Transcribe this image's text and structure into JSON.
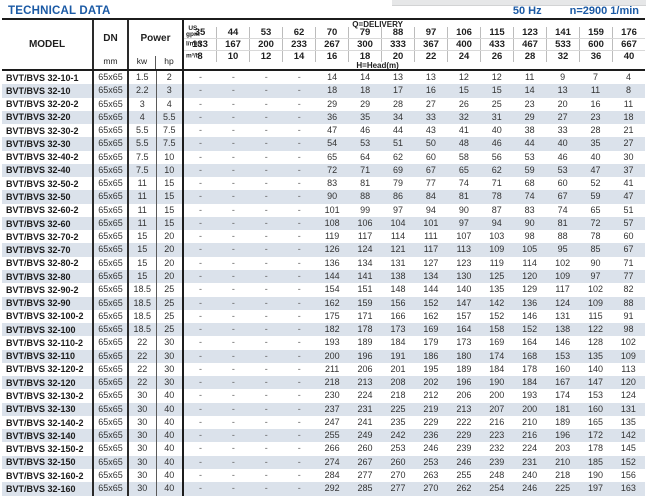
{
  "page": {
    "title": "TECHNICAL DATA",
    "frequency": "50 Hz",
    "speed": "n=2900 1/min"
  },
  "colors": {
    "accent_blue": "#1b5aa5",
    "row_stripe": "#dbe2eb",
    "border_dark": "#1c1c1c"
  },
  "table": {
    "header": {
      "model_label": "MODEL",
      "dn_label": "DN",
      "dn_unit": "mm",
      "power_label": "Power",
      "power_units": [
        "kw",
        "hp"
      ],
      "delivery_label": "Q=DELIVERY",
      "head_label": "H=Head(m)",
      "flow_rows": [
        {
          "unit_lines": [
            "US",
            "gpm"
          ],
          "values": [
            "35",
            "44",
            "53",
            "62",
            "70",
            "79",
            "88",
            "97",
            "106",
            "115",
            "123",
            "141",
            "159",
            "176"
          ]
        },
        {
          "unit_lines": [
            "l/min"
          ],
          "values": [
            "133",
            "167",
            "200",
            "233",
            "267",
            "300",
            "333",
            "367",
            "400",
            "433",
            "467",
            "533",
            "600",
            "667"
          ]
        },
        {
          "unit_lines": [
            "m³/h"
          ],
          "values": [
            "8",
            "10",
            "12",
            "14",
            "16",
            "18",
            "20",
            "22",
            "24",
            "26",
            "28",
            "32",
            "36",
            "40"
          ]
        }
      ]
    },
    "rows": [
      {
        "model": "BVT/BVS 32-10-1",
        "dn": "65x65",
        "kw": "1.5",
        "hp": "2",
        "heads": [
          "-",
          "-",
          "-",
          "-",
          "14",
          "14",
          "13",
          "13",
          "12",
          "12",
          "11",
          "9",
          "7",
          "4"
        ]
      },
      {
        "model": "BVT/BVS 32-10",
        "dn": "65x65",
        "kw": "2.2",
        "hp": "3",
        "heads": [
          "-",
          "-",
          "-",
          "-",
          "18",
          "18",
          "17",
          "16",
          "15",
          "15",
          "14",
          "13",
          "11",
          "8"
        ]
      },
      {
        "model": "BVT/BVS 32-20-2",
        "dn": "65x65",
        "kw": "3",
        "hp": "4",
        "heads": [
          "-",
          "-",
          "-",
          "-",
          "29",
          "29",
          "28",
          "27",
          "26",
          "25",
          "23",
          "20",
          "16",
          "11"
        ]
      },
      {
        "model": "BVT/BVS 32-20",
        "dn": "65x65",
        "kw": "4",
        "hp": "5.5",
        "heads": [
          "-",
          "-",
          "-",
          "-",
          "36",
          "35",
          "34",
          "33",
          "32",
          "31",
          "29",
          "27",
          "23",
          "18"
        ]
      },
      {
        "model": "BVT/BVS 32-30-2",
        "dn": "65x65",
        "kw": "5.5",
        "hp": "7.5",
        "heads": [
          "-",
          "-",
          "-",
          "-",
          "47",
          "46",
          "44",
          "43",
          "41",
          "40",
          "38",
          "33",
          "28",
          "21"
        ]
      },
      {
        "model": "BVT/BVS 32-30",
        "dn": "65x65",
        "kw": "5.5",
        "hp": "7.5",
        "heads": [
          "-",
          "-",
          "-",
          "-",
          "54",
          "53",
          "51",
          "50",
          "48",
          "46",
          "44",
          "40",
          "35",
          "27"
        ]
      },
      {
        "model": "BVT/BVS 32-40-2",
        "dn": "65x65",
        "kw": "7.5",
        "hp": "10",
        "heads": [
          "-",
          "-",
          "-",
          "-",
          "65",
          "64",
          "62",
          "60",
          "58",
          "56",
          "53",
          "46",
          "40",
          "30"
        ]
      },
      {
        "model": "BVT/BVS 32-40",
        "dn": "65x65",
        "kw": "7.5",
        "hp": "10",
        "heads": [
          "-",
          "-",
          "-",
          "-",
          "72",
          "71",
          "69",
          "67",
          "65",
          "62",
          "59",
          "53",
          "47",
          "37"
        ]
      },
      {
        "model": "BVT/BVS 32-50-2",
        "dn": "65x65",
        "kw": "11",
        "hp": "15",
        "heads": [
          "-",
          "-",
          "-",
          "-",
          "83",
          "81",
          "79",
          "77",
          "74",
          "71",
          "68",
          "60",
          "52",
          "41"
        ]
      },
      {
        "model": "BVT/BVS 32-50",
        "dn": "65x65",
        "kw": "11",
        "hp": "15",
        "heads": [
          "-",
          "-",
          "-",
          "-",
          "90",
          "88",
          "86",
          "84",
          "81",
          "78",
          "74",
          "67",
          "59",
          "47"
        ]
      },
      {
        "model": "BVT/BVS 32-60-2",
        "dn": "65x65",
        "kw": "11",
        "hp": "15",
        "heads": [
          "-",
          "-",
          "-",
          "-",
          "101",
          "99",
          "97",
          "94",
          "90",
          "87",
          "83",
          "74",
          "65",
          "51"
        ]
      },
      {
        "model": "BVT/BVS 32-60",
        "dn": "65x65",
        "kw": "11",
        "hp": "15",
        "heads": [
          "-",
          "-",
          "-",
          "-",
          "108",
          "106",
          "104",
          "101",
          "97",
          "94",
          "90",
          "81",
          "72",
          "57"
        ]
      },
      {
        "model": "BVT/BVS 32-70-2",
        "dn": "65x65",
        "kw": "15",
        "hp": "20",
        "heads": [
          "-",
          "-",
          "-",
          "-",
          "119",
          "117",
          "114",
          "111",
          "107",
          "103",
          "98",
          "88",
          "78",
          "60"
        ]
      },
      {
        "model": "BVT/BVS 32-70",
        "dn": "65x65",
        "kw": "15",
        "hp": "20",
        "heads": [
          "-",
          "-",
          "-",
          "-",
          "126",
          "124",
          "121",
          "117",
          "113",
          "109",
          "105",
          "95",
          "85",
          "67"
        ]
      },
      {
        "model": "BVT/BVS 32-80-2",
        "dn": "65x65",
        "kw": "15",
        "hp": "20",
        "heads": [
          "-",
          "-",
          "-",
          "-",
          "136",
          "134",
          "131",
          "127",
          "123",
          "119",
          "114",
          "102",
          "90",
          "71"
        ]
      },
      {
        "model": "BVT/BVS 32-80",
        "dn": "65x65",
        "kw": "15",
        "hp": "20",
        "heads": [
          "-",
          "-",
          "-",
          "-",
          "144",
          "141",
          "138",
          "134",
          "130",
          "125",
          "120",
          "109",
          "97",
          "77"
        ]
      },
      {
        "model": "BVT/BVS 32-90-2",
        "dn": "65x65",
        "kw": "18.5",
        "hp": "25",
        "heads": [
          "-",
          "-",
          "-",
          "-",
          "154",
          "151",
          "148",
          "144",
          "140",
          "135",
          "129",
          "117",
          "102",
          "82"
        ]
      },
      {
        "model": "BVT/BVS 32-90",
        "dn": "65x65",
        "kw": "18.5",
        "hp": "25",
        "heads": [
          "-",
          "-",
          "-",
          "-",
          "162",
          "159",
          "156",
          "152",
          "147",
          "142",
          "136",
          "124",
          "109",
          "88"
        ]
      },
      {
        "model": "BVT/BVS 32-100-2",
        "dn": "65x65",
        "kw": "18.5",
        "hp": "25",
        "heads": [
          "-",
          "-",
          "-",
          "-",
          "175",
          "171",
          "166",
          "162",
          "157",
          "152",
          "146",
          "131",
          "115",
          "91"
        ]
      },
      {
        "model": "BVT/BVS 32-100",
        "dn": "65x65",
        "kw": "18.5",
        "hp": "25",
        "heads": [
          "-",
          "-",
          "-",
          "-",
          "182",
          "178",
          "173",
          "169",
          "164",
          "158",
          "152",
          "138",
          "122",
          "98"
        ]
      },
      {
        "model": "BVT/BVS 32-110-2",
        "dn": "65x65",
        "kw": "22",
        "hp": "30",
        "heads": [
          "-",
          "-",
          "-",
          "-",
          "193",
          "189",
          "184",
          "179",
          "173",
          "169",
          "164",
          "146",
          "128",
          "102"
        ]
      },
      {
        "model": "BVT/BVS 32-110",
        "dn": "65x65",
        "kw": "22",
        "hp": "30",
        "heads": [
          "-",
          "-",
          "-",
          "-",
          "200",
          "196",
          "191",
          "186",
          "180",
          "174",
          "168",
          "153",
          "135",
          "109"
        ]
      },
      {
        "model": "BVT/BVS 32-120-2",
        "dn": "65x65",
        "kw": "22",
        "hp": "30",
        "heads": [
          "-",
          "-",
          "-",
          "-",
          "211",
          "206",
          "201",
          "195",
          "189",
          "184",
          "178",
          "160",
          "140",
          "113"
        ]
      },
      {
        "model": "BVT/BVS 32-120",
        "dn": "65x65",
        "kw": "22",
        "hp": "30",
        "heads": [
          "-",
          "-",
          "-",
          "-",
          "218",
          "213",
          "208",
          "202",
          "196",
          "190",
          "184",
          "167",
          "147",
          "120"
        ]
      },
      {
        "model": "BVT/BVS 32-130-2",
        "dn": "65x65",
        "kw": "30",
        "hp": "40",
        "heads": [
          "-",
          "-",
          "-",
          "-",
          "230",
          "224",
          "218",
          "212",
          "206",
          "200",
          "193",
          "174",
          "153",
          "124"
        ]
      },
      {
        "model": "BVT/BVS 32-130",
        "dn": "65x65",
        "kw": "30",
        "hp": "40",
        "heads": [
          "-",
          "-",
          "-",
          "-",
          "237",
          "231",
          "225",
          "219",
          "213",
          "207",
          "200",
          "181",
          "160",
          "131"
        ]
      },
      {
        "model": "BVT/BVS 32-140-2",
        "dn": "65x65",
        "kw": "30",
        "hp": "40",
        "heads": [
          "-",
          "-",
          "-",
          "-",
          "247",
          "241",
          "235",
          "229",
          "222",
          "216",
          "210",
          "189",
          "165",
          "135"
        ]
      },
      {
        "model": "BVT/BVS 32-140",
        "dn": "65x65",
        "kw": "30",
        "hp": "40",
        "heads": [
          "-",
          "-",
          "-",
          "-",
          "255",
          "249",
          "242",
          "236",
          "229",
          "223",
          "216",
          "196",
          "172",
          "142"
        ]
      },
      {
        "model": "BVT/BVS 32-150-2",
        "dn": "65x65",
        "kw": "30",
        "hp": "40",
        "heads": [
          "-",
          "-",
          "-",
          "-",
          "266",
          "260",
          "253",
          "246",
          "239",
          "232",
          "224",
          "203",
          "178",
          "145"
        ]
      },
      {
        "model": "BVT/BVS 32-150",
        "dn": "65x65",
        "kw": "30",
        "hp": "40",
        "heads": [
          "-",
          "-",
          "-",
          "-",
          "274",
          "267",
          "260",
          "253",
          "246",
          "239",
          "231",
          "210",
          "185",
          "152"
        ]
      },
      {
        "model": "BVT/BVS 32-160-2",
        "dn": "65x65",
        "kw": "30",
        "hp": "40",
        "heads": [
          "-",
          "-",
          "-",
          "-",
          "284",
          "277",
          "270",
          "263",
          "255",
          "248",
          "240",
          "218",
          "190",
          "156"
        ]
      },
      {
        "model": "BVT/BVS 32-160",
        "dn": "65x65",
        "kw": "30",
        "hp": "40",
        "heads": [
          "-",
          "-",
          "-",
          "-",
          "292",
          "285",
          "277",
          "270",
          "262",
          "254",
          "246",
          "225",
          "197",
          "163"
        ]
      }
    ]
  }
}
